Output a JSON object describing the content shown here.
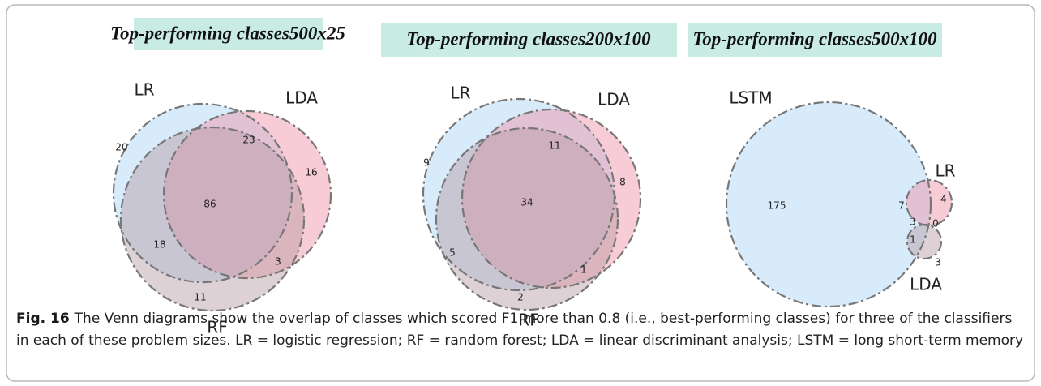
{
  "panels": [
    {
      "title": "Top-performing classes500x25",
      "sets": [
        "LR",
        "LDA",
        "RF"
      ],
      "regions": [
        20,
        23,
        16,
        86,
        18,
        3,
        11
      ]
    },
    {
      "title": "Top-performing classes200x100",
      "sets": [
        "LR",
        "LDA",
        "RF"
      ],
      "regions": [
        9,
        11,
        8,
        34,
        5,
        1,
        2
      ]
    },
    {
      "title": "Top-performing classes500x100",
      "sets": [
        "LSTM",
        "LR",
        "LDA"
      ],
      "regions": [
        175,
        7,
        4,
        3,
        0,
        1,
        3
      ]
    }
  ],
  "caption": {
    "label": "Fig. 16",
    "text": "The Venn diagrams show the overlap of classes which scored F1 more than 0.8 (i.e., best-performing classes) for three of the classifiers in each of these problem sizes. LR = logistic regression; RF = random forest; LDA = linear discriminant analysis; LSTM = long short-term memory"
  }
}
